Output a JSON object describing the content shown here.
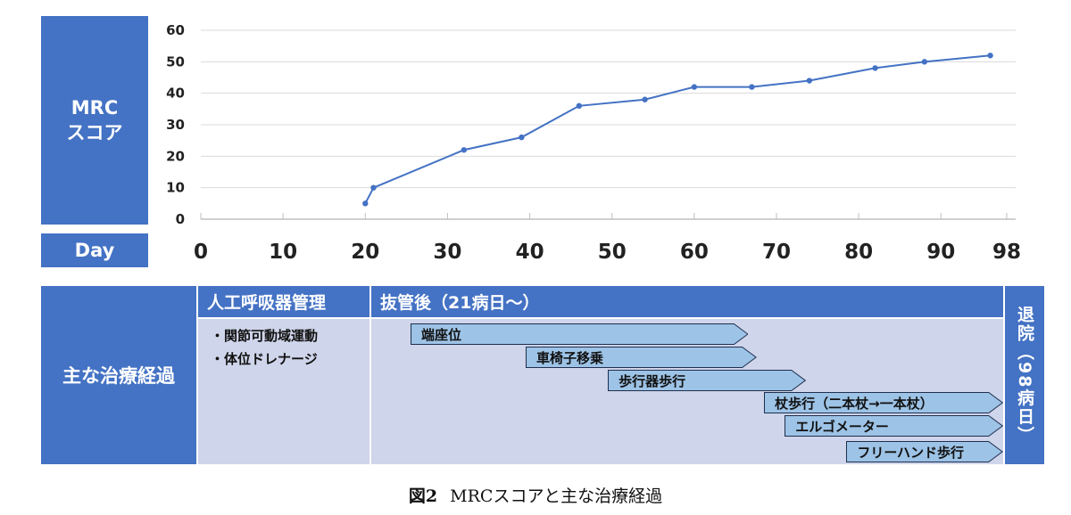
{
  "chart_data": {
    "type": "line",
    "ylabel": "MRC\nスコア",
    "xlabel": "Day",
    "xlim": [
      0,
      98
    ],
    "ylim": [
      0,
      60
    ],
    "x_ticks": [
      0,
      10,
      20,
      30,
      40,
      50,
      60,
      70,
      80,
      90,
      98
    ],
    "y_ticks": [
      0,
      10,
      20,
      30,
      40,
      50,
      60
    ],
    "grid": true,
    "series": [
      {
        "x": [
          20,
          21,
          32,
          39,
          46,
          54,
          60,
          67,
          74,
          82,
          88,
          96
        ],
        "y": [
          5,
          10,
          22,
          26,
          36,
          38,
          42,
          42,
          44,
          48,
          50,
          52
        ],
        "color": "#4472c4"
      }
    ]
  },
  "labels": {
    "ylabel_line1": "MRC",
    "ylabel_line2": "スコア",
    "day": "Day"
  },
  "treatment": {
    "title": "主な治療経過",
    "phase1": "人工呼吸器管理",
    "phase2": "抜管後（21病日〜）",
    "discharge": "退院（98病日）",
    "phase1_items": [
      "・関節可動域運動",
      "・体位ドレナージ"
    ],
    "bars": [
      {
        "label": "端座位",
        "start": 25.5,
        "end": 67
      },
      {
        "label": "車椅子移乗",
        "start": 39.5,
        "end": 68
      },
      {
        "label": "歩行器歩行",
        "start": 49.5,
        "end": 74
      },
      {
        "label": "杖歩行（二本杖→一本杖）",
        "start": 68.5,
        "end": 98
      },
      {
        "label": "エルゴメーター",
        "start": 71,
        "end": 98
      },
      {
        "label": "フリーハンド歩行",
        "start": 78.5,
        "end": 98
      }
    ],
    "bar_color": "#9dc3e6"
  },
  "caption": {
    "fig": "図2",
    "text": "MRCスコアと主な治療経過"
  }
}
